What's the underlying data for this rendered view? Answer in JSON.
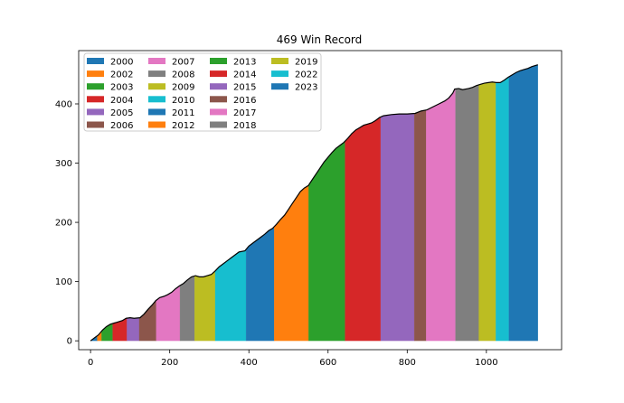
{
  "chart_data": {
    "type": "area",
    "title": "469 Win Record",
    "xlabel": "",
    "ylabel": "",
    "xlim": [
      -30,
      1190
    ],
    "ylim": [
      -15,
      490
    ],
    "xticks": [
      0,
      200,
      400,
      600,
      800,
      1000
    ],
    "yticks": [
      0,
      100,
      200,
      300,
      400
    ],
    "grid": false,
    "legend_position": "upper-left",
    "legend_columns": 4,
    "line_color": "#000000",
    "line_points": [
      [
        0,
        0
      ],
      [
        10,
        5
      ],
      [
        20,
        10
      ],
      [
        30,
        18
      ],
      [
        40,
        24
      ],
      [
        50,
        28
      ],
      [
        60,
        30
      ],
      [
        70,
        32
      ],
      [
        80,
        34
      ],
      [
        90,
        38
      ],
      [
        100,
        39
      ],
      [
        110,
        38
      ],
      [
        125,
        39
      ],
      [
        135,
        45
      ],
      [
        145,
        53
      ],
      [
        155,
        60
      ],
      [
        165,
        68
      ],
      [
        175,
        73
      ],
      [
        185,
        75
      ],
      [
        195,
        78
      ],
      [
        205,
        82
      ],
      [
        215,
        88
      ],
      [
        225,
        93
      ],
      [
        235,
        97
      ],
      [
        245,
        103
      ],
      [
        255,
        108
      ],
      [
        265,
        110
      ],
      [
        275,
        108
      ],
      [
        285,
        108
      ],
      [
        295,
        110
      ],
      [
        305,
        112
      ],
      [
        315,
        118
      ],
      [
        325,
        125
      ],
      [
        335,
        130
      ],
      [
        345,
        135
      ],
      [
        355,
        140
      ],
      [
        365,
        145
      ],
      [
        375,
        150
      ],
      [
        390,
        152
      ],
      [
        400,
        160
      ],
      [
        410,
        165
      ],
      [
        420,
        170
      ],
      [
        430,
        175
      ],
      [
        440,
        180
      ],
      [
        450,
        186
      ],
      [
        460,
        190
      ],
      [
        470,
        197
      ],
      [
        480,
        205
      ],
      [
        490,
        212
      ],
      [
        500,
        222
      ],
      [
        510,
        232
      ],
      [
        520,
        242
      ],
      [
        530,
        252
      ],
      [
        540,
        258
      ],
      [
        550,
        262
      ],
      [
        560,
        272
      ],
      [
        570,
        282
      ],
      [
        580,
        292
      ],
      [
        590,
        302
      ],
      [
        600,
        310
      ],
      [
        610,
        318
      ],
      [
        620,
        325
      ],
      [
        630,
        330
      ],
      [
        640,
        335
      ],
      [
        650,
        342
      ],
      [
        660,
        350
      ],
      [
        670,
        356
      ],
      [
        680,
        360
      ],
      [
        690,
        364
      ],
      [
        700,
        366
      ],
      [
        710,
        368
      ],
      [
        720,
        372
      ],
      [
        730,
        377
      ],
      [
        740,
        380
      ],
      [
        760,
        382
      ],
      [
        780,
        383
      ],
      [
        800,
        383
      ],
      [
        820,
        384
      ],
      [
        835,
        388
      ],
      [
        850,
        390
      ],
      [
        865,
        395
      ],
      [
        880,
        400
      ],
      [
        895,
        405
      ],
      [
        905,
        410
      ],
      [
        915,
        418
      ],
      [
        920,
        425
      ],
      [
        930,
        426
      ],
      [
        940,
        424
      ],
      [
        955,
        426
      ],
      [
        965,
        428
      ],
      [
        975,
        431
      ],
      [
        985,
        433
      ],
      [
        995,
        435
      ],
      [
        1005,
        436
      ],
      [
        1015,
        437
      ],
      [
        1025,
        436
      ],
      [
        1035,
        436
      ],
      [
        1045,
        440
      ],
      [
        1055,
        445
      ],
      [
        1065,
        449
      ],
      [
        1075,
        453
      ],
      [
        1085,
        456
      ],
      [
        1095,
        458
      ],
      [
        1105,
        460
      ],
      [
        1115,
        463
      ],
      [
        1130,
        466
      ]
    ],
    "series": [
      {
        "name": "2000",
        "x_start": 0,
        "x_end": 17,
        "color": "#1f77b4"
      },
      {
        "name": "2002",
        "x_start": 17,
        "x_end": 28,
        "color": "#ff7f0e"
      },
      {
        "name": "2003",
        "x_start": 28,
        "x_end": 56,
        "color": "#2ca02c"
      },
      {
        "name": "2004",
        "x_start": 56,
        "x_end": 92,
        "color": "#d62728"
      },
      {
        "name": "2005",
        "x_start": 92,
        "x_end": 123,
        "color": "#9467bd"
      },
      {
        "name": "2006",
        "x_start": 123,
        "x_end": 166,
        "color": "#8c564b"
      },
      {
        "name": "2007",
        "x_start": 166,
        "x_end": 226,
        "color": "#e377c2"
      },
      {
        "name": "2008",
        "x_start": 226,
        "x_end": 263,
        "color": "#7f7f7f"
      },
      {
        "name": "2009",
        "x_start": 263,
        "x_end": 315,
        "color": "#bcbd22"
      },
      {
        "name": "2010",
        "x_start": 315,
        "x_end": 393,
        "color": "#17becf"
      },
      {
        "name": "2011",
        "x_start": 393,
        "x_end": 464,
        "color": "#1f77b4"
      },
      {
        "name": "2012",
        "x_start": 464,
        "x_end": 551,
        "color": "#ff7f0e"
      },
      {
        "name": "2013",
        "x_start": 551,
        "x_end": 643,
        "color": "#2ca02c"
      },
      {
        "name": "2014",
        "x_start": 643,
        "x_end": 733,
        "color": "#d62728"
      },
      {
        "name": "2015",
        "x_start": 733,
        "x_end": 818,
        "color": "#9467bd"
      },
      {
        "name": "2016",
        "x_start": 818,
        "x_end": 848,
        "color": "#8c564b"
      },
      {
        "name": "2017",
        "x_start": 848,
        "x_end": 922,
        "color": "#e377c2"
      },
      {
        "name": "2018",
        "x_start": 922,
        "x_end": 981,
        "color": "#7f7f7f"
      },
      {
        "name": "2019",
        "x_start": 981,
        "x_end": 1024,
        "color": "#bcbd22"
      },
      {
        "name": "2022",
        "x_start": 1024,
        "x_end": 1057,
        "color": "#17becf"
      },
      {
        "name": "2023",
        "x_start": 1057,
        "x_end": 1130,
        "color": "#1f77b4"
      }
    ]
  }
}
